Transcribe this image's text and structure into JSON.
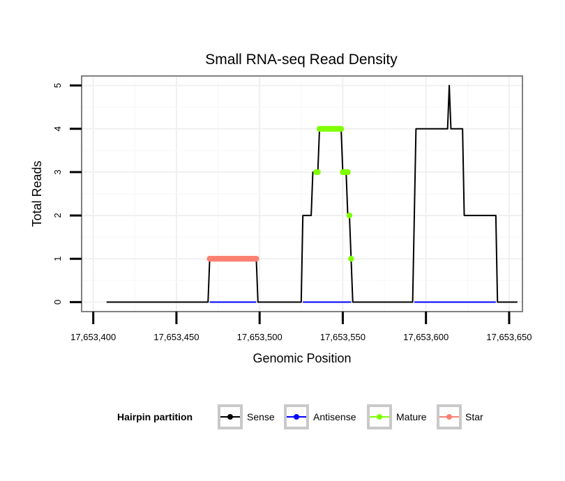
{
  "chart_data": {
    "type": "line",
    "title": "Small RNA-seq Read Density",
    "xlabel": "Genomic Position",
    "ylabel": "Total Reads",
    "xlim": [
      17653393,
      17653658
    ],
    "ylim": [
      -0.22,
      5.22
    ],
    "x_ticks": [
      17653400,
      17653450,
      17653500,
      17653550,
      17653600,
      17653650
    ],
    "x_tick_labels": [
      "17,653,400",
      "17,653,450",
      "17,653,500",
      "17,653,550",
      "17,653,600",
      "17,653,650"
    ],
    "y_ticks": [
      0,
      1,
      2,
      3,
      4,
      5
    ],
    "y_tick_labels": [
      "0",
      "1",
      "2",
      "3",
      "4",
      "5"
    ],
    "grid": true,
    "legend_position": "bottom",
    "legend_title": "Hairpin partition",
    "series": [
      {
        "name": "Sense",
        "color": "#000000",
        "style": "line",
        "x": [
          17653408,
          17653469,
          17653470,
          17653498,
          17653499,
          17653525,
          17653526,
          17653531,
          17653532,
          17653535,
          17653536,
          17653549,
          17653550,
          17653552,
          17653553,
          17653554,
          17653555,
          17653556,
          17653592,
          17653593,
          17653594,
          17653612,
          17653613,
          17653614,
          17653615,
          17653618,
          17653619,
          17653622,
          17653623,
          17653642,
          17653643,
          17653655
        ],
        "values": [
          0,
          0,
          1,
          1,
          0,
          0,
          2,
          2,
          3,
          3,
          4,
          4,
          3,
          3,
          2,
          2,
          1,
          0,
          0,
          2,
          4,
          4,
          4,
          5,
          4,
          4,
          4,
          4,
          2,
          2,
          0,
          0
        ]
      },
      {
        "name": "Antisense",
        "color": "#0000ff",
        "style": "line",
        "x": [
          17653470,
          17653498,
          17653526,
          17653555,
          17653593,
          17653642
        ],
        "values": [
          0,
          0,
          0,
          0,
          0,
          0
        ],
        "segments": [
          [
            0,
            1
          ],
          [
            2,
            3
          ],
          [
            4,
            5
          ]
        ]
      },
      {
        "name": "Mature",
        "color": "#7fff00",
        "style": "points",
        "x": [
          17653534,
          17653535,
          17653536,
          17653537,
          17653538,
          17653539,
          17653540,
          17653541,
          17653542,
          17653543,
          17653544,
          17653545,
          17653546,
          17653547,
          17653548,
          17653549,
          17653550,
          17653551,
          17653552,
          17653553,
          17653554,
          17653555
        ],
        "values": [
          3,
          3,
          4,
          4,
          4,
          4,
          4,
          4,
          4,
          4,
          4,
          4,
          4,
          4,
          4,
          4,
          3,
          3,
          3,
          3,
          2,
          1
        ]
      },
      {
        "name": "Star",
        "color": "#fa8072",
        "style": "points",
        "x": [
          17653470,
          17653471,
          17653472,
          17653473,
          17653474,
          17653475,
          17653476,
          17653477,
          17653478,
          17653479,
          17653480,
          17653481,
          17653482,
          17653483,
          17653484,
          17653485,
          17653486,
          17653487,
          17653488,
          17653489,
          17653490,
          17653491,
          17653492,
          17653493,
          17653494,
          17653495,
          17653496,
          17653497,
          17653498
        ],
        "values": [
          1,
          1,
          1,
          1,
          1,
          1,
          1,
          1,
          1,
          1,
          1,
          1,
          1,
          1,
          1,
          1,
          1,
          1,
          1,
          1,
          1,
          1,
          1,
          1,
          1,
          1,
          1,
          1,
          1
        ]
      }
    ]
  }
}
